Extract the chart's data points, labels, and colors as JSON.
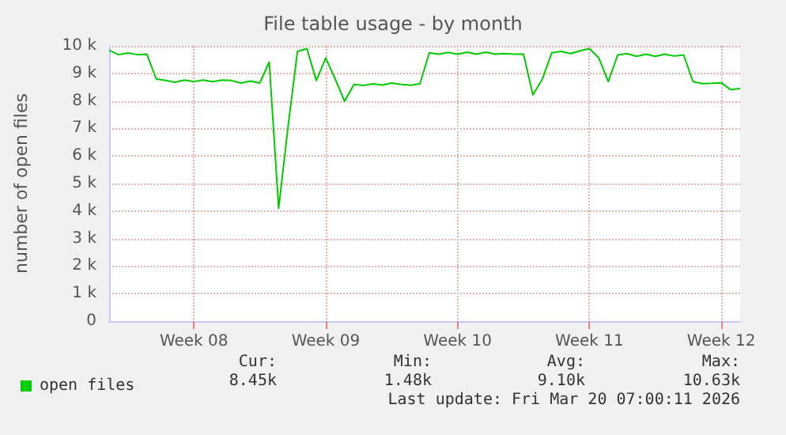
{
  "chart_data": {
    "type": "line",
    "title": "File table usage - by month",
    "ylabel": "number of open files",
    "categories": [
      null,
      null,
      null,
      null,
      null,
      null,
      null,
      null,
      null,
      "Week 08",
      null,
      null,
      null,
      null,
      null,
      null,
      null,
      null,
      null,
      null,
      null,
      null,
      null,
      "Week 09",
      null,
      null,
      null,
      null,
      null,
      null,
      null,
      null,
      null,
      null,
      null,
      null,
      null,
      "Week 10",
      null,
      null,
      null,
      null,
      null,
      null,
      null,
      null,
      null,
      null,
      null,
      null,
      null,
      "Week 11",
      null,
      null,
      null,
      null,
      null,
      null,
      null,
      null,
      null,
      null,
      null,
      null,
      null,
      "Week 12",
      null,
      null
    ],
    "series": [
      {
        "name": "open files",
        "color": "#00cc00",
        "values": [
          9840,
          9680,
          9740,
          9680,
          9700,
          8800,
          8740,
          8680,
          8760,
          8700,
          8760,
          8700,
          8760,
          8740,
          8650,
          8720,
          8650,
          9410,
          4100,
          7070,
          9800,
          9900,
          8740,
          9560,
          8800,
          7990,
          8600,
          8560,
          8620,
          8580,
          8650,
          8600,
          8570,
          8620,
          9750,
          9700,
          9760,
          9700,
          9770,
          9700,
          9770,
          9700,
          9720,
          9700,
          9700,
          8220,
          8790,
          9750,
          9800,
          9720,
          9820,
          9900,
          9560,
          8700,
          9670,
          9720,
          9620,
          9700,
          9620,
          9700,
          9630,
          9670,
          8700,
          8630,
          8640,
          8660,
          8410,
          8450
        ]
      }
    ],
    "ylim": [
      0,
      10000
    ],
    "yticks": [
      0,
      {
        "value": 1000,
        "label": "1 k"
      },
      {
        "value": 2000,
        "label": "2 k"
      },
      {
        "value": 3000,
        "label": "3 k"
      },
      {
        "value": 4000,
        "label": "4 k"
      },
      {
        "value": 5000,
        "label": "5 k"
      },
      {
        "value": 6000,
        "label": "6 k"
      },
      {
        "value": 7000,
        "label": "7 k"
      },
      {
        "value": 8000,
        "label": "8 k"
      },
      {
        "value": 9000,
        "label": "9 k"
      },
      {
        "value": 10000,
        "label": "10 k"
      }
    ],
    "grid": true,
    "legend": "bottom left",
    "marker": "none",
    "line_style": "solid",
    "annotations": [
      "Cur:",
      "Min:",
      "Avg:",
      "Max:",
      "8.45k",
      "1.48k",
      "9.10k",
      "10.63k",
      "Last update: Fri Mar 20 07:00:11 2026"
    ]
  }
}
